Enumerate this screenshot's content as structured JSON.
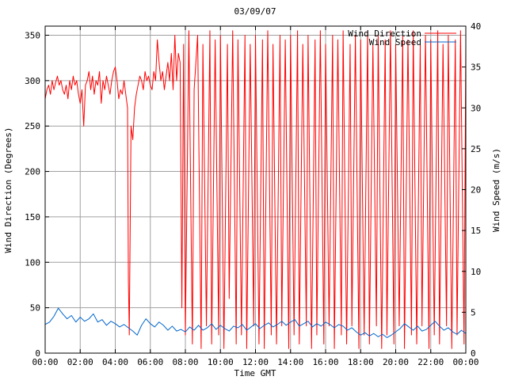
{
  "chart_data": {
    "type": "line",
    "title": "03/09/07",
    "xlabel": "Time GMT",
    "ylabel_left": "Wind Direction (Degrees)",
    "ylabel_right": "Wind Speed (m/s)",
    "xlim": [
      0,
      24
    ],
    "ylim_left": [
      0,
      360
    ],
    "ylim_right": [
      0,
      40
    ],
    "x_ticks": [
      "00:00",
      "02:00",
      "04:00",
      "06:00",
      "08:00",
      "10:00",
      "12:00",
      "14:00",
      "16:00",
      "18:00",
      "20:00",
      "22:00",
      "00:00"
    ],
    "y_ticks_left": [
      0,
      50,
      100,
      150,
      200,
      250,
      300,
      350
    ],
    "y_ticks_right": [
      0,
      5,
      10,
      15,
      20,
      25,
      30,
      35,
      40
    ],
    "grid": true,
    "legend_position": "top-right",
    "series": [
      {
        "name": "Wind Direction",
        "axis": "left",
        "color": "#ff0000",
        "x": [
          0.0,
          0.1,
          0.2,
          0.3,
          0.4,
          0.5,
          0.6,
          0.7,
          0.8,
          0.9,
          1.0,
          1.1,
          1.2,
          1.3,
          1.4,
          1.5,
          1.6,
          1.7,
          1.8,
          1.9,
          2.0,
          2.1,
          2.2,
          2.3,
          2.4,
          2.5,
          2.6,
          2.7,
          2.8,
          2.9,
          3.0,
          3.1,
          3.2,
          3.3,
          3.4,
          3.5,
          3.6,
          3.7,
          3.8,
          3.9,
          4.0,
          4.1,
          4.2,
          4.3,
          4.4,
          4.5,
          4.6,
          4.7,
          4.75,
          4.8,
          4.9,
          5.0,
          5.1,
          5.2,
          5.3,
          5.4,
          5.5,
          5.6,
          5.7,
          5.8,
          5.9,
          6.0,
          6.1,
          6.2,
          6.3,
          6.4,
          6.5,
          6.6,
          6.7,
          6.8,
          6.9,
          7.0,
          7.1,
          7.2,
          7.3,
          7.4,
          7.5,
          7.6,
          7.7,
          7.8,
          7.9,
          8.0,
          8.2,
          8.4,
          8.5,
          8.7,
          8.9,
          9.0,
          9.2,
          9.4,
          9.5,
          9.7,
          9.9,
          10.0,
          10.2,
          10.4,
          10.5,
          10.7,
          10.9,
          11.0,
          11.2,
          11.4,
          11.5,
          11.7,
          11.9,
          12.0,
          12.2,
          12.4,
          12.5,
          12.7,
          12.9,
          13.0,
          13.2,
          13.4,
          13.5,
          13.7,
          13.9,
          14.0,
          14.2,
          14.4,
          14.5,
          14.7,
          14.9,
          15.0,
          15.2,
          15.4,
          15.5,
          15.7,
          15.9,
          16.0,
          16.2,
          16.4,
          16.5,
          16.7,
          16.9,
          17.0,
          17.2,
          17.4,
          17.5,
          17.7,
          17.9,
          18.0,
          18.2,
          18.4,
          18.5,
          18.7,
          18.9,
          19.0,
          19.2,
          19.4,
          19.5,
          19.7,
          19.9,
          20.0,
          20.2,
          20.4,
          20.5,
          20.7,
          20.9,
          21.0,
          21.2,
          21.4,
          21.5,
          21.7,
          21.9,
          22.0,
          22.2,
          22.4,
          22.5,
          22.7,
          22.9,
          23.0,
          23.2,
          23.4,
          23.5,
          23.7,
          23.9,
          24.0
        ],
        "y": [
          280,
          290,
          295,
          285,
          300,
          290,
          298,
          305,
          295,
          300,
          290,
          285,
          295,
          280,
          300,
          290,
          305,
          295,
          300,
          285,
          275,
          290,
          250,
          295,
          300,
          310,
          290,
          305,
          285,
          300,
          295,
          310,
          275,
          300,
          290,
          305,
          295,
          285,
          300,
          310,
          315,
          300,
          280,
          290,
          285,
          300,
          285,
          270,
          80,
          20,
          250,
          235,
          270,
          285,
          295,
          305,
          300,
          290,
          310,
          300,
          305,
          295,
          290,
          310,
          300,
          345,
          320,
          300,
          310,
          290,
          305,
          320,
          300,
          330,
          290,
          350,
          300,
          330,
          320,
          50,
          340,
          20,
          355,
          10,
          290,
          350,
          5,
          340,
          30,
          355,
          10,
          345,
          20,
          350,
          5,
          340,
          60,
          355,
          10,
          345,
          20,
          350,
          5,
          340,
          30,
          350,
          10,
          345,
          5,
          355,
          20,
          340,
          10,
          350,
          30,
          345,
          5,
          350,
          20,
          355,
          10,
          340,
          30,
          350,
          5,
          345,
          20,
          355,
          10,
          340,
          30,
          350,
          5,
          345,
          20,
          355,
          10,
          340,
          30,
          350,
          5,
          345,
          20,
          355,
          10,
          340,
          30,
          350,
          5,
          345,
          20,
          355,
          10,
          340,
          30,
          350,
          5,
          345,
          20,
          355,
          10,
          340,
          30,
          350,
          5,
          345,
          20,
          355,
          10,
          340,
          30,
          350,
          5,
          345,
          20,
          355,
          10,
          340
        ]
      },
      {
        "name": "Wind Speed",
        "axis": "right",
        "color": "#0066cc",
        "x": [
          0.0,
          0.25,
          0.5,
          0.75,
          1.0,
          1.25,
          1.5,
          1.75,
          2.0,
          2.25,
          2.5,
          2.75,
          3.0,
          3.25,
          3.5,
          3.75,
          4.0,
          4.25,
          4.5,
          4.75,
          5.0,
          5.25,
          5.5,
          5.75,
          6.0,
          6.25,
          6.5,
          6.75,
          7.0,
          7.25,
          7.5,
          7.75,
          8.0,
          8.25,
          8.5,
          8.75,
          9.0,
          9.25,
          9.5,
          9.75,
          10.0,
          10.25,
          10.5,
          10.75,
          11.0,
          11.25,
          11.5,
          11.75,
          12.0,
          12.25,
          12.5,
          12.75,
          13.0,
          13.25,
          13.5,
          13.75,
          14.0,
          14.25,
          14.5,
          14.75,
          15.0,
          15.25,
          15.5,
          15.75,
          16.0,
          16.25,
          16.5,
          16.75,
          17.0,
          17.25,
          17.5,
          17.75,
          18.0,
          18.25,
          18.5,
          18.75,
          19.0,
          19.25,
          19.5,
          19.75,
          20.0,
          20.25,
          20.5,
          20.75,
          21.0,
          21.25,
          21.5,
          21.75,
          22.0,
          22.25,
          22.5,
          22.75,
          23.0,
          23.25,
          23.5,
          23.75,
          24.0
        ],
        "y": [
          3.5,
          3.8,
          4.5,
          5.5,
          4.8,
          4.2,
          4.6,
          3.8,
          4.4,
          3.9,
          4.2,
          4.8,
          3.8,
          4.1,
          3.4,
          3.9,
          3.6,
          3.2,
          3.5,
          3.1,
          2.7,
          2.2,
          3.4,
          4.2,
          3.6,
          3.2,
          3.8,
          3.4,
          2.8,
          3.3,
          2.7,
          2.9,
          2.6,
          3.2,
          2.8,
          3.4,
          2.8,
          3.1,
          3.6,
          2.9,
          3.4,
          3.0,
          2.7,
          3.3,
          3.1,
          3.5,
          2.8,
          3.2,
          3.6,
          3.0,
          3.4,
          3.7,
          3.2,
          3.5,
          3.9,
          3.4,
          3.8,
          4.1,
          3.3,
          3.6,
          3.9,
          3.2,
          3.6,
          3.3,
          3.8,
          3.5,
          3.1,
          3.5,
          3.3,
          2.8,
          3.1,
          2.6,
          2.2,
          2.5,
          2.1,
          2.4,
          2.0,
          2.3,
          1.9,
          2.2,
          2.6,
          3.0,
          3.6,
          3.2,
          2.8,
          3.3,
          2.7,
          2.9,
          3.4,
          3.9,
          3.3,
          2.8,
          3.1,
          2.6,
          2.3,
          2.8,
          2.4
        ]
      }
    ]
  }
}
